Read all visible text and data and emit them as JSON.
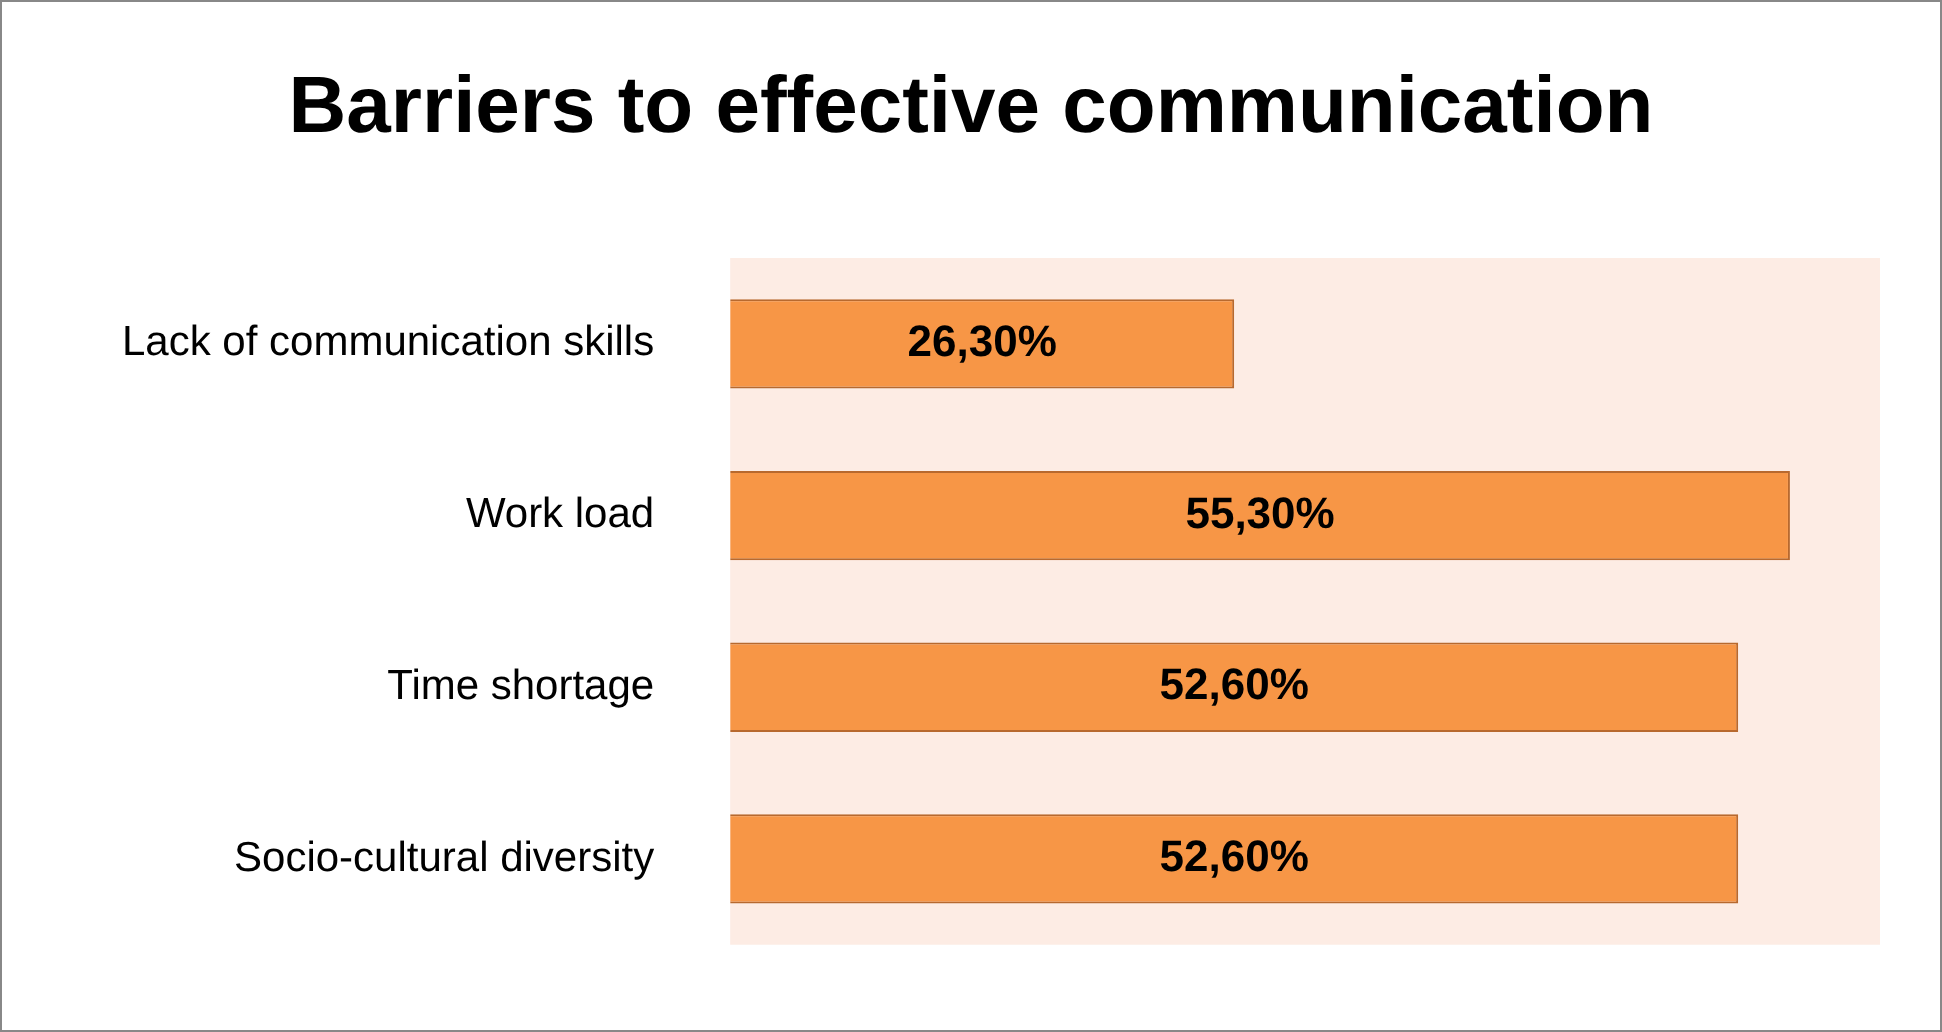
{
  "chart_data": {
    "type": "bar",
    "orientation": "horizontal",
    "title": "Barriers to effective communication",
    "categories": [
      "Lack of communication skills",
      "Work load",
      "Time shortage",
      "Socio-cultural diversity"
    ],
    "values": [
      26.3,
      55.3,
      52.6,
      52.6
    ],
    "value_labels": [
      "26,30%",
      "55,30%",
      "52,60%",
      "52,60%"
    ],
    "color": "#f79646",
    "xlim": [
      0,
      60
    ]
  }
}
